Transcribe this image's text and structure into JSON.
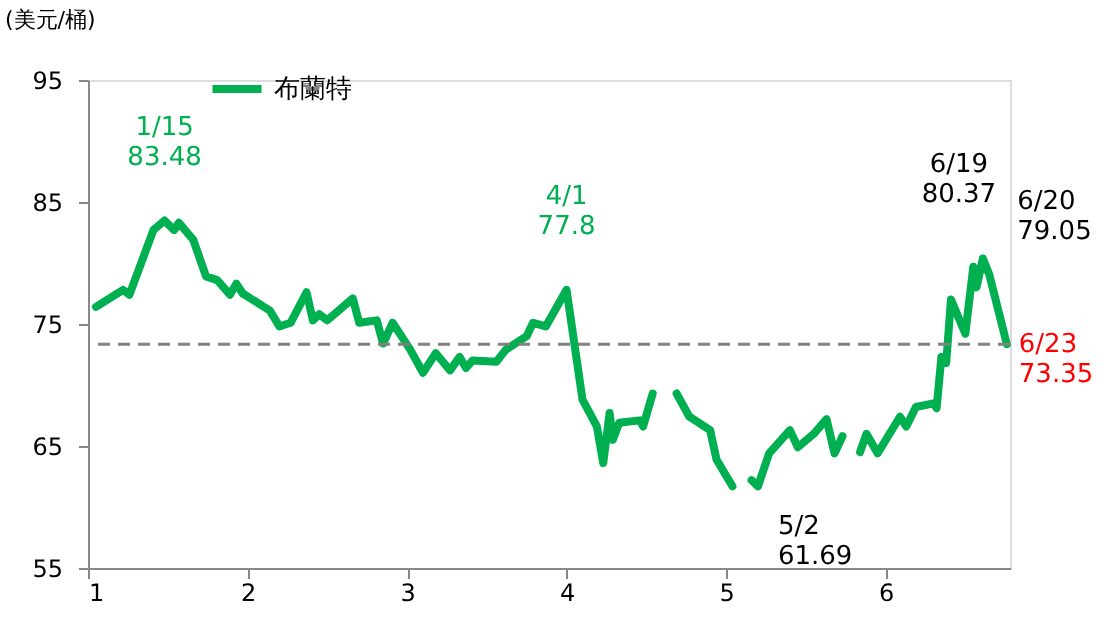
{
  "chart_data": {
    "type": "line",
    "ylabel": "(美元/桶)",
    "legend": "top left",
    "grid": false,
    "line_style": "solid",
    "marker": "none",
    "xlim": [
      1,
      6.78
    ],
    "xticks": [
      1,
      2,
      3,
      4,
      5,
      6
    ],
    "ylim": [
      55,
      95
    ],
    "yticks": [
      55,
      65,
      75,
      85,
      95
    ],
    "series": [
      {
        "name": "布蘭特",
        "color": "#00b050",
        "x": [
          1.05,
          1.22,
          1.26,
          1.41,
          1.48,
          1.54,
          1.57,
          1.66,
          1.74,
          1.81,
          1.89,
          1.93,
          1.97,
          2.14,
          2.2,
          2.27,
          2.37,
          2.41,
          2.45,
          2.5,
          2.66,
          2.7,
          2.81,
          2.85,
          2.91,
          3.02,
          3.1,
          3.18,
          3.27,
          3.33,
          3.37,
          3.41,
          3.56,
          3.62,
          3.75,
          3.79,
          3.87,
          4.0,
          4.1,
          4.19,
          4.23,
          4.27,
          4.29,
          4.33,
          4.46,
          4.48,
          4.54,
          4.6,
          4.69,
          4.77,
          4.9,
          4.94,
          5.04,
          5.1,
          5.16,
          5.2,
          5.27,
          5.4,
          5.45,
          5.55,
          5.63,
          5.68,
          5.73,
          5.78,
          5.84,
          5.88,
          5.95,
          6.09,
          6.13,
          6.19,
          6.3,
          6.32,
          6.35,
          6.38,
          6.41,
          6.5,
          6.55,
          6.57,
          6.61,
          6.65,
          6.76
        ],
        "values": [
          76.4,
          77.8,
          77.4,
          82.7,
          83.48,
          82.7,
          83.3,
          81.9,
          78.9,
          78.6,
          77.4,
          78.3,
          77.5,
          76.1,
          74.8,
          75.1,
          77.6,
          75.3,
          75.8,
          75.3,
          77.1,
          75.1,
          75.3,
          73.4,
          75.1,
          72.9,
          71.0,
          72.6,
          71.2,
          72.3,
          71.4,
          72.0,
          71.9,
          72.9,
          74.0,
          75.1,
          74.8,
          77.8,
          68.8,
          66.6,
          63.6,
          67.7,
          65.5,
          66.9,
          67.1,
          66.6,
          69.3,
          null,
          69.3,
          67.4,
          66.3,
          63.9,
          61.7,
          null,
          62.2,
          61.69,
          64.4,
          66.3,
          64.9,
          66.0,
          67.2,
          64.4,
          65.8,
          null,
          64.5,
          66.0,
          64.4,
          67.4,
          66.6,
          68.2,
          68.5,
          68.1,
          72.3,
          71.8,
          77.0,
          74.2,
          79.7,
          78.0,
          80.37,
          79.05,
          73.35
        ]
      }
    ],
    "ref_lines": [
      {
        "axis": "y",
        "value": 73.35,
        "color": "#808080",
        "line_style": "dashed"
      }
    ],
    "annotations": [
      {
        "text": "1/15\n83.48",
        "x": 1.48,
        "y": 83.48
      },
      {
        "text": "4/1\n77.8",
        "x": 4.0,
        "y": 77.8
      },
      {
        "text": "5/2\n61.69",
        "x": 5.2,
        "y": 61.69
      },
      {
        "text": "6/19\n80.37",
        "x": 6.61,
        "y": 80.37
      },
      {
        "text": "6/20\n79.05",
        "x": 6.65,
        "y": 79.05
      },
      {
        "text": "6/23\n73.35",
        "x": 6.76,
        "y": 73.35
      }
    ]
  }
}
